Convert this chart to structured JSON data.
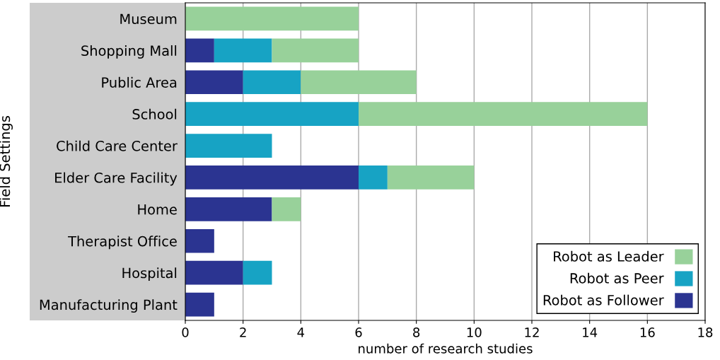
{
  "chart_data": {
    "type": "bar",
    "orientation": "horizontal",
    "stacked": true,
    "xlabel": "number of research studies",
    "ylabel": "Field Settings",
    "categories": [
      "Museum",
      "Shopping Mall",
      "Public Area",
      "School",
      "Child Care Center",
      "Elder Care Facility",
      "Home",
      "Therapist Office",
      "Hospital",
      "Manufacturing Plant"
    ],
    "series": [
      {
        "name": "Robot as Follower",
        "color": "#2b3491",
        "values": [
          0,
          1,
          2,
          0,
          0,
          6,
          3,
          1,
          2,
          1
        ]
      },
      {
        "name": "Robot as Peer",
        "color": "#17a3c4",
        "values": [
          0,
          2,
          2,
          6,
          3,
          1,
          0,
          0,
          1,
          0
        ]
      },
      {
        "name": "Robot as Leader",
        "color": "#98d19a",
        "values": [
          6,
          3,
          4,
          10,
          0,
          3,
          1,
          0,
          0,
          0
        ]
      }
    ],
    "xlim": [
      0,
      18
    ],
    "xticks": [
      0,
      2,
      4,
      6,
      8,
      10,
      12,
      14,
      16,
      18
    ],
    "grid": "x",
    "legend": "bottom right"
  }
}
